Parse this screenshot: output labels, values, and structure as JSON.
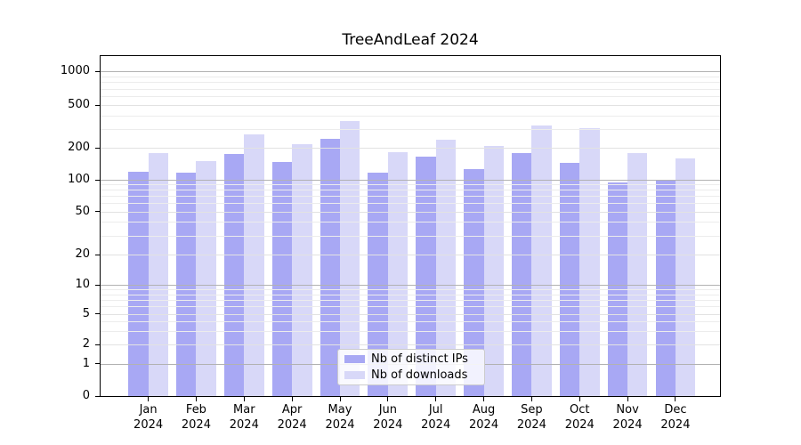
{
  "title": "TreeAndLeaf 2024",
  "chart_data": {
    "type": "bar",
    "title": "TreeAndLeaf 2024",
    "categories": [
      "Jan",
      "Feb",
      "Mar",
      "Apr",
      "May",
      "Jun",
      "Jul",
      "Aug",
      "Sep",
      "Oct",
      "Nov",
      "Dec"
    ],
    "x_tick_year": "2024",
    "series": [
      {
        "name": "Nb of distinct IPs",
        "color": "#a8a8f4",
        "values": [
          119,
          117,
          176,
          147,
          242,
          117,
          165,
          126,
          178,
          145,
          94,
          98
        ]
      },
      {
        "name": "Nb of downloads",
        "color": "#d8d8f8",
        "values": [
          177,
          150,
          265,
          217,
          358,
          181,
          239,
          206,
          321,
          302,
          178,
          158
        ]
      }
    ],
    "y_ticks": [
      0,
      1,
      2,
      5,
      10,
      20,
      50,
      100,
      200,
      500,
      1000
    ],
    "y_minor_gridlines": [
      3,
      4,
      6,
      7,
      8,
      9,
      30,
      40,
      60,
      70,
      80,
      90,
      300,
      400,
      600,
      700,
      800,
      900
    ],
    "y_scale": "symlog",
    "ylim": [
      0,
      1400
    ],
    "grid": "horizontal major and minor, drawn above bars",
    "legend_position": "bottom-center"
  },
  "colors": {
    "bar_distinct_ips": "#a8a8f4",
    "bar_downloads": "#d8d8f8",
    "grid_major": "#b2b2b2",
    "grid_minor": "#ececec",
    "axis": "#000000",
    "legend_border": "#cccccc",
    "background": "#ffffff",
    "text": "#000000"
  }
}
